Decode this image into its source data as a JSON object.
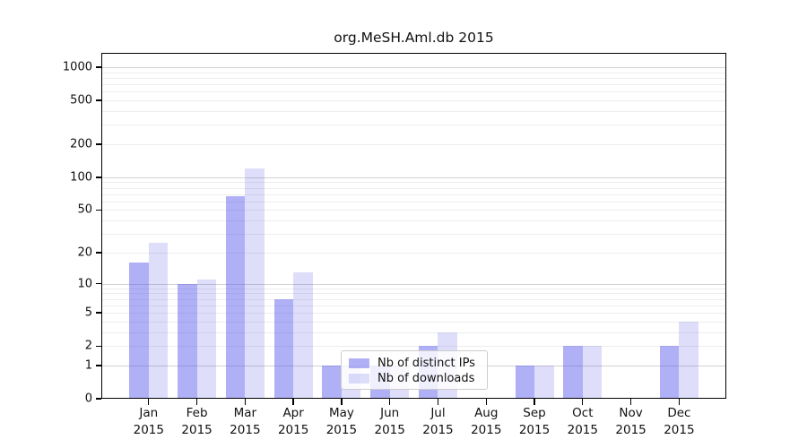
{
  "chart_data": {
    "type": "bar",
    "title": "org.MeSH.Aml.db 2015",
    "categories": [
      "Jan 2015",
      "Feb 2015",
      "Mar 2015",
      "Apr 2015",
      "May 2015",
      "Jun 2015",
      "Jul 2015",
      "Aug 2015",
      "Sep 2015",
      "Oct 2015",
      "Nov 2015",
      "Dec 2015"
    ],
    "series": [
      {
        "name": "Nb of distinct IPs",
        "color": "#5050EB73",
        "values": [
          16,
          10,
          67,
          7,
          1,
          1,
          2,
          0,
          1,
          2,
          0,
          2
        ]
      },
      {
        "name": "Nb of downloads",
        "color": "#5050EB30",
        "values": [
          25,
          11,
          120,
          13,
          1,
          1,
          3,
          0,
          1,
          2,
          0,
          4
        ]
      }
    ],
    "y_axis": {
      "scale": "log10(1+x)",
      "tick_values": [
        0,
        1,
        2,
        5,
        10,
        20,
        50,
        100,
        200,
        500,
        1000
      ],
      "ylim": [
        0,
        1275
      ]
    },
    "x_axis": {
      "tick_label_line2": "2015"
    },
    "grid": "on",
    "legend_position": "bottom-center",
    "colors": {
      "bar_dark_rendered": "#b0b0f5",
      "bar_light_rendered": "#dedef9",
      "grid_minor": "#ededed",
      "grid_major": "#d2d2d2"
    }
  }
}
